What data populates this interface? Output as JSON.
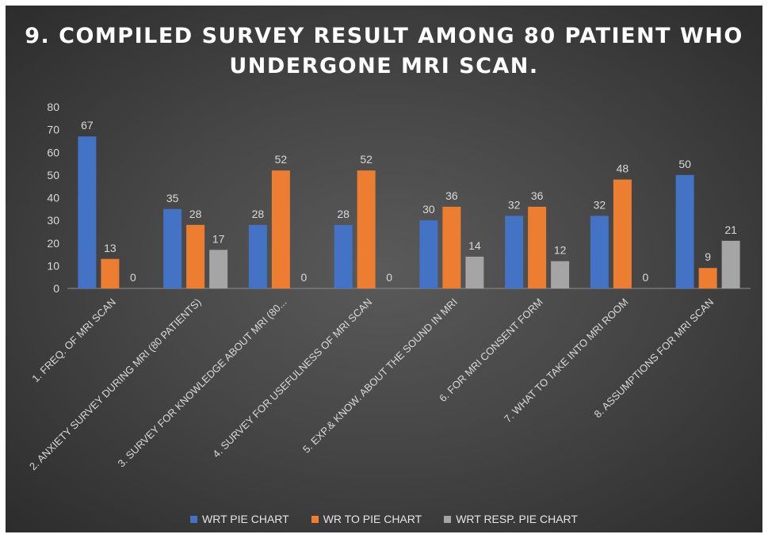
{
  "chart_data": {
    "type": "bar",
    "title": "9. COMPILED SURVEY RESULT AMONG 80 PATIENT WHO UNDERGONE MRI SCAN.",
    "categories": [
      "1. FREQ. OF MRI SCAN",
      "2. ANXIETY SURVEY DURING MRI (80 PATIENTS)",
      "3. SURVEY FOR KNOWLEDGE ABOUT MRI (80...",
      "4. SURVEY FOR USEFULNESS OF MRI SCAN",
      "5. EXP.& KNOW. ABOUT THE SOUND IN MRI",
      "6. FOR MRI CONSENT FORM",
      "7. WHAT TO TAKE INTO MRI ROOM",
      "8. ASSUMPTIONS FOR MRI SCAN"
    ],
    "series": [
      {
        "name": "WRT PIE CHART",
        "color": "#4472C4",
        "values": [
          67,
          35,
          28,
          28,
          30,
          32,
          32,
          50
        ]
      },
      {
        "name": "WR TO PIE CHART",
        "color": "#ED7D31",
        "values": [
          13,
          28,
          52,
          52,
          36,
          36,
          48,
          9
        ]
      },
      {
        "name": "WRT RESP. PIE CHART",
        "color": "#A5A5A5",
        "values": [
          0,
          17,
          0,
          0,
          14,
          12,
          0,
          21
        ]
      }
    ],
    "ylim": [
      0,
      80
    ],
    "yticks": [
      0,
      10,
      20,
      30,
      40,
      50,
      60,
      70,
      80
    ],
    "grid": false,
    "data_labels": true,
    "legend_position": "bottom"
  }
}
